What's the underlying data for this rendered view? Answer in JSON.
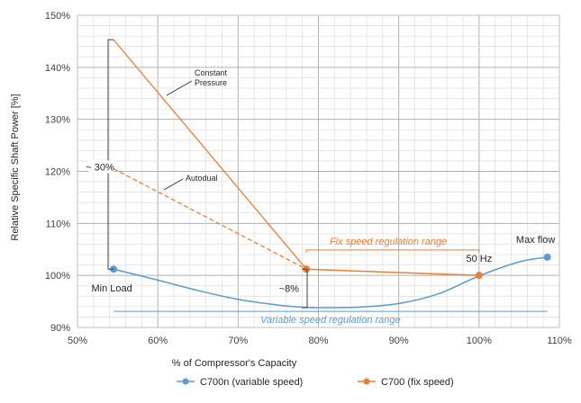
{
  "chart_data": {
    "type": "line",
    "xlabel": "% of Compressor's Capacity",
    "ylabel": "Relative Specific Shaft Power [%]",
    "xlim": [
      50,
      110
    ],
    "ylim": [
      90,
      150
    ],
    "x_ticks": [
      "50%",
      "60%",
      "70%",
      "80%",
      "90%",
      "100%",
      "110%"
    ],
    "y_ticks": [
      "90%",
      "100%",
      "110%",
      "120%",
      "130%",
      "140%",
      "150%"
    ],
    "grid": true,
    "legend_position": "bottom",
    "series": [
      {
        "name": "C700n (variable speed)",
        "color": "#5b9bd5",
        "style": "smooth",
        "x": [
          54.5,
          60,
          65,
          70,
          75,
          78,
          80,
          85,
          90,
          95,
          100,
          105,
          108.5
        ],
        "y": [
          101.2,
          99.1,
          97.1,
          95.4,
          94.3,
          93.9,
          93.8,
          93.9,
          94.6,
          96.5,
          99.9,
          102.6,
          103.5
        ],
        "markers": [
          {
            "x": 54.5,
            "y": 101.2
          },
          {
            "x": 108.5,
            "y": 103.5
          }
        ]
      },
      {
        "name": "C700 (fix speed)",
        "color": "#ed7d31",
        "style": "straight",
        "x": [
          78.5,
          100
        ],
        "y": [
          101.2,
          100
        ],
        "markers": [
          {
            "x": 78.5,
            "y": 101.2
          },
          {
            "x": 100,
            "y": 100
          }
        ]
      }
    ],
    "extra_lines": [
      {
        "label": "Constant Pressure",
        "color": "#ed7d31",
        "dashed": false,
        "x": [
          54.5,
          78.5
        ],
        "y": [
          145.3,
          101.2
        ]
      },
      {
        "label": "Autodual",
        "color": "#ed7d31",
        "dashed": true,
        "x": [
          54.5,
          78.5
        ],
        "y": [
          120.5,
          101.2
        ]
      }
    ],
    "annotations": {
      "constant_pressure": "Constant\nPressure",
      "autodual": "Autodual",
      "bracket_30": "~ 30%",
      "bracket_8": "~8%",
      "min_load": "Min Load",
      "max_flow": "Max flow",
      "hz50": "50 Hz",
      "fix_range": "Fix speed regulation range",
      "var_range": "Variable speed regulation range"
    }
  }
}
